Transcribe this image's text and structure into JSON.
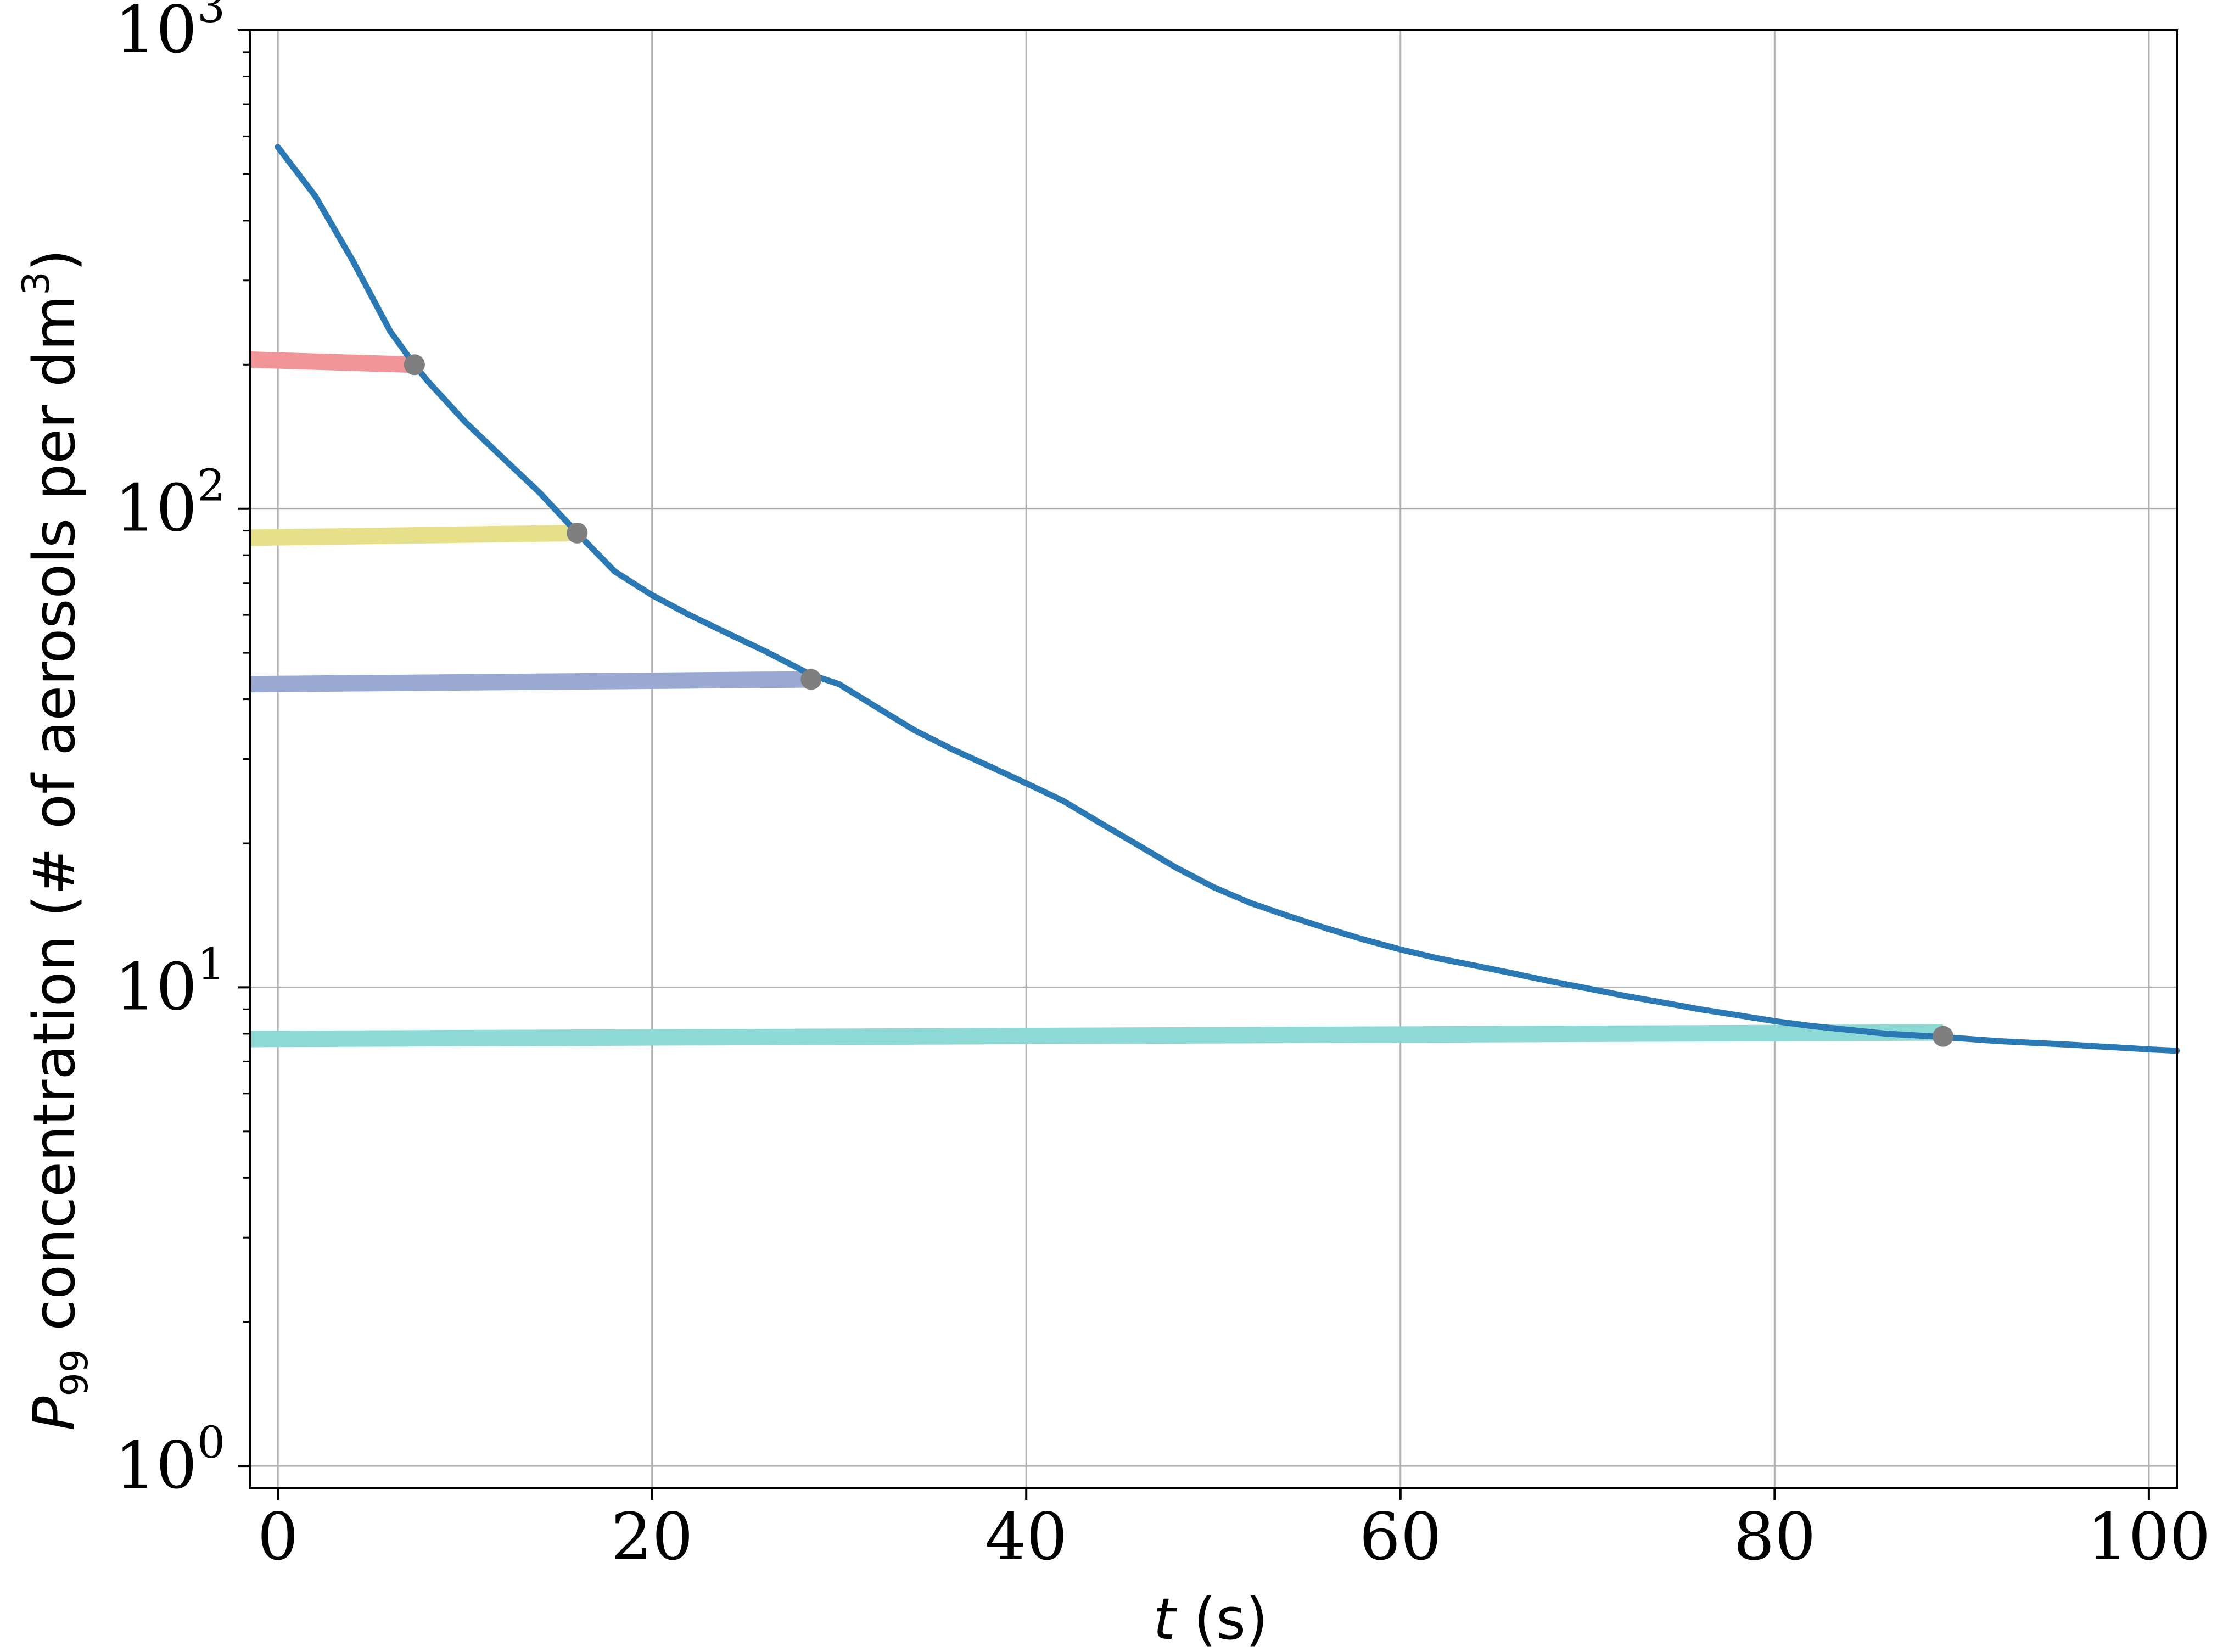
{
  "chart_data": {
    "type": "line",
    "title": "",
    "xlabel": {
      "var": "t",
      "unit": " (s)"
    },
    "ylabel": {
      "var": "P",
      "sub": "99",
      "text": " concentration (# of aerosols per dm",
      "sup": "3",
      "close": ")"
    },
    "xlim": [
      -1.5,
      101.5
    ],
    "ylim": [
      0.9,
      1000
    ],
    "yscale": "log",
    "grid": true,
    "x_ticks": [
      "0",
      "20",
      "40",
      "60",
      "80",
      "100"
    ],
    "y_ticks": [
      {
        "base": "10",
        "exp": "0",
        "value": 1
      },
      {
        "base": "10",
        "exp": "1",
        "value": 10
      },
      {
        "base": "10",
        "exp": "2",
        "value": 100
      },
      {
        "base": "10",
        "exp": "3",
        "value": 1000
      }
    ],
    "series": [
      {
        "color": "#2a78b4",
        "x": [
          0,
          2,
          4,
          6,
          7.3,
          8,
          10,
          12,
          14,
          16,
          18,
          20,
          22,
          24,
          26,
          28.5,
          30,
          32,
          34,
          36,
          38,
          40,
          42,
          44,
          46,
          48,
          50,
          52,
          54,
          56,
          58,
          60,
          62,
          64,
          66,
          68,
          70,
          72,
          74,
          76,
          78,
          80,
          82,
          84,
          86,
          88,
          89,
          90,
          92,
          94,
          96,
          98,
          100,
          101.5
        ],
        "y": [
          570,
          450,
          330,
          235,
          200,
          185,
          152,
          128,
          108,
          89,
          74,
          66,
          60,
          55,
          50.5,
          45,
          43,
          38.5,
          34.5,
          31.5,
          29,
          26.7,
          24.5,
          22,
          19.8,
          17.8,
          16.2,
          15,
          14.1,
          13.3,
          12.6,
          12.0,
          11.5,
          11.1,
          10.7,
          10.3,
          9.95,
          9.6,
          9.3,
          9.0,
          8.75,
          8.5,
          8.3,
          8.15,
          8.0,
          7.92,
          7.87,
          7.82,
          7.72,
          7.65,
          7.58,
          7.5,
          7.42,
          7.37
        ]
      }
    ],
    "threshold_lines": [
      {
        "color": "#f19599",
        "x_start": -1.5,
        "x_end": 7.3,
        "y_start": 205,
        "y_end": 200
      },
      {
        "color": "#e6e08a",
        "x_start": -1.5,
        "x_end": 16,
        "y_start": 87,
        "y_end": 89
      },
      {
        "color": "#9aa9d2",
        "x_start": -1.5,
        "x_end": 28.5,
        "y_start": 43,
        "y_end": 44
      },
      {
        "color": "#8cd9d6",
        "x_start": -1.5,
        "x_end": 89,
        "y_start": 7.8,
        "y_end": 8.05
      }
    ],
    "markers": [
      {
        "x": 7.3,
        "y": 200
      },
      {
        "x": 16,
        "y": 89
      },
      {
        "x": 28.5,
        "y": 44
      },
      {
        "x": 89,
        "y": 7.9
      }
    ],
    "marker_color": "#7f7f7f"
  }
}
